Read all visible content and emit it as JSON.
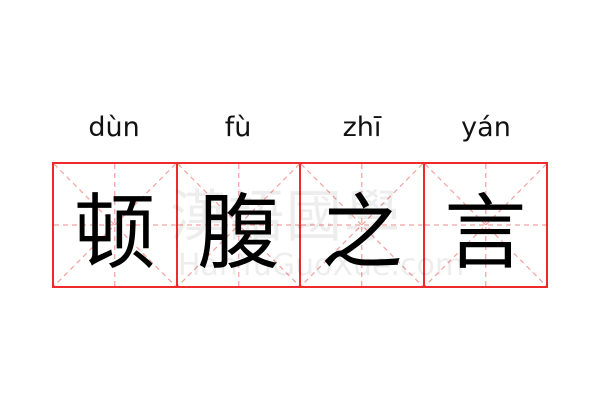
{
  "entries": [
    {
      "pinyin": "dùn",
      "char": "顿"
    },
    {
      "pinyin": "fù",
      "char": "腹"
    },
    {
      "pinyin": "zhī",
      "char": "之"
    },
    {
      "pinyin": "yán",
      "char": "言"
    }
  ],
  "watermark": {
    "text": "漢語國學",
    "url": "HanYuGuoXue.com"
  },
  "colors": {
    "grid": "#ee2a2a",
    "guide": "#f5a0a0"
  }
}
